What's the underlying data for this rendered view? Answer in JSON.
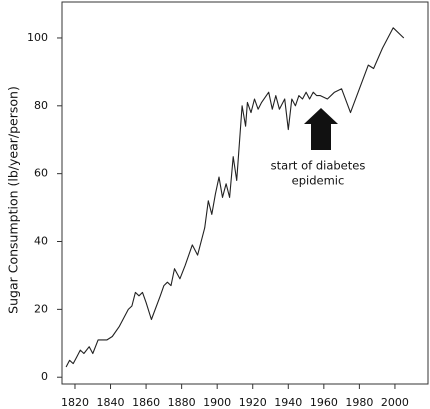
{
  "chart_data": {
    "type": "line",
    "y_label": "Sugar Consumption (lb/year/person)",
    "annotation": [
      "start of diabetes",
      "epidemic"
    ],
    "x": [
      1815,
      1817,
      1819,
      1821,
      1823,
      1825,
      1828,
      1830,
      1833,
      1838,
      1841,
      1845,
      1850,
      1852,
      1854,
      1856,
      1858,
      1860,
      1863,
      1868,
      1870,
      1872,
      1874,
      1876,
      1879,
      1882,
      1886,
      1889,
      1893,
      1895,
      1897,
      1899,
      1901,
      1903,
      1905,
      1907,
      1909,
      1911,
      1914,
      1916,
      1917,
      1919,
      1921,
      1923,
      1925,
      1929,
      1931,
      1933,
      1935,
      1938,
      1940,
      1942,
      1944,
      1946,
      1948,
      1950,
      1952,
      1954,
      1956,
      1958,
      1962,
      1966,
      1970,
      1975,
      1980,
      1985,
      1988,
      1993,
      1999,
      2005
    ],
    "series": [
      {
        "color": "#222222",
        "values": [
          3,
          5,
          4,
          6,
          8,
          7,
          9,
          7,
          11,
          11,
          12,
          15,
          20,
          21,
          25,
          24,
          25,
          22,
          17,
          24,
          27,
          28,
          27,
          32,
          29,
          33,
          39,
          36,
          44,
          52,
          48,
          54,
          59,
          53,
          57,
          53,
          65,
          58,
          80,
          74,
          81,
          78,
          82,
          79,
          81,
          84,
          79,
          83,
          79,
          82,
          73,
          82,
          80,
          83,
          82,
          84,
          82,
          84,
          83,
          83,
          82,
          84,
          85,
          78,
          85,
          92,
          91,
          97,
          103,
          100
        ]
      }
    ],
    "xlim": [
      1812.7,
      2018.6
    ],
    "ylim": [
      -2,
      110.6
    ],
    "xticks": [
      1820,
      1840,
      1860,
      1880,
      1900,
      1920,
      1940,
      1960,
      1980,
      2000
    ],
    "yticks": [
      0,
      20,
      40,
      60,
      80,
      100
    ],
    "grid": false
  }
}
